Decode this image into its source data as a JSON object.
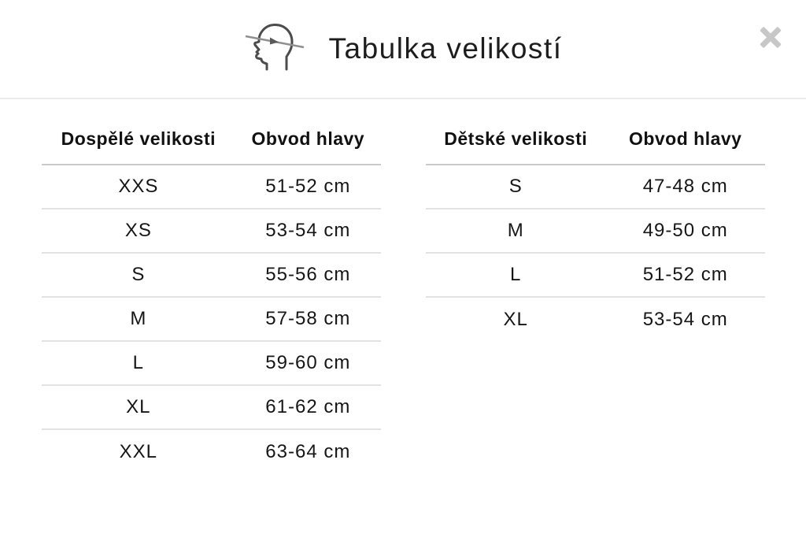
{
  "modal": {
    "title": "Tabulka velikostí"
  },
  "icons": {
    "header_icon": "head-circumference-icon",
    "close_icon": "close-icon"
  },
  "colors": {
    "background": "#ffffff",
    "title_text": "#1d1d1d",
    "cell_text": "#161616",
    "header_divider": "#ebebeb",
    "table_header_underline": "#c9c9c9",
    "row_divider": "#e2e2e2",
    "close_icon": "#c7c7c7",
    "icon_stroke": "#4c4c4c"
  },
  "tables": [
    {
      "name": "adult-sizes",
      "columns": [
        "Dospělé velikosti",
        "Obvod hlavy"
      ],
      "rows": [
        [
          "XXS",
          "51-52 cm"
        ],
        [
          "XS",
          "53-54 cm"
        ],
        [
          "S",
          "55-56 cm"
        ],
        [
          "M",
          "57-58 cm"
        ],
        [
          "L",
          "59-60 cm"
        ],
        [
          "XL",
          "61-62 cm"
        ],
        [
          "XXL",
          "63-64 cm"
        ]
      ]
    },
    {
      "name": "children-sizes",
      "columns": [
        "Dětské velikosti",
        "Obvod hlavy"
      ],
      "rows": [
        [
          "S",
          "47-48 cm"
        ],
        [
          "M",
          "49-50 cm"
        ],
        [
          "L",
          "51-52 cm"
        ],
        [
          "XL",
          "53-54 cm"
        ]
      ]
    }
  ]
}
